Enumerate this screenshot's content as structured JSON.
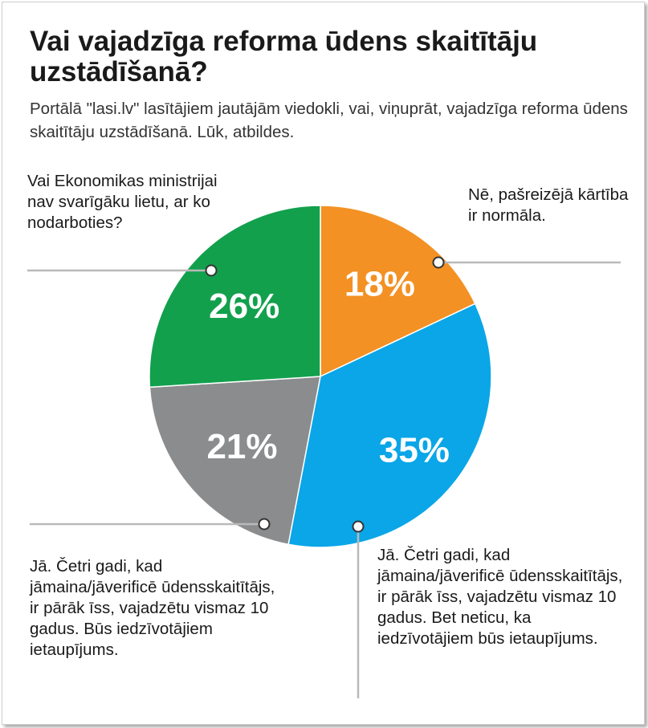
{
  "title": "Vai vajadzīga reforma ūdens skaitītāju uzstādīšanā?",
  "subtitle": "Portālā \"lasi.lv\" lasītājiem jautājām viedokli, vai, viņuprāt, vajadzīga reforma ūdens skaitītāju uzstādīšanā. Lūk, atbildes.",
  "chart_data": {
    "type": "pie",
    "title": "Vai vajadzīga reforma ūdens skaitītāju uzstādīšanā?",
    "subtitle": "Portālā \"lasi.lv\" lasītājiem jautājām viedokli, vai, viņuprāt, vajadzīga reforma ūdens skaitītāju uzstādīšanā. Lūk, atbildes.",
    "start_angle_deg": 0,
    "direction": "clockwise",
    "slices": [
      {
        "id": "no",
        "label": "Nē, pašreizējā kārtība ir normāla.",
        "value": 18,
        "value_label": "18%",
        "color": "#f39124"
      },
      {
        "id": "yes-doubt",
        "label": "Jā. Četri gadi, kad jāmaina/jāverificē ūdensskaitītājs, ir pārāk īss, vajadzētu vismaz 10 gadus. Bet neticu, ka iedzīvotājiem būs ietaupījums.",
        "value": 35,
        "value_label": "35%",
        "color": "#0aa6e8"
      },
      {
        "id": "yes-saving",
        "label": "Jā. Četri gadi, kad jāmaina/jāverificē ūdensskaitītājs, ir pārāk īss, vajadzētu vismaz 10 gadus. Būs iedzīvotājiem ietaupījums.",
        "value": 21,
        "value_label": "21%",
        "color": "#8b8c8e"
      },
      {
        "id": "ministry",
        "label": "Vai Ekonomikas ministrijai nav svarīgāku lietu, ar ko nodarboties?",
        "value": 26,
        "value_label": "26%",
        "color": "#12a04d"
      }
    ]
  }
}
